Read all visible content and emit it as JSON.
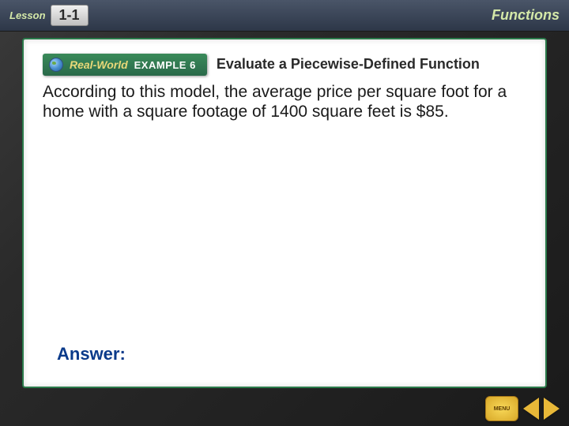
{
  "header": {
    "lesson_label": "Lesson",
    "lesson_number": "1-1",
    "chapter_title": "Functions"
  },
  "example": {
    "badge_realworld": "Real-World",
    "badge_label": "EXAMPLE 6",
    "title": "Evaluate a Piecewise-Defined Function"
  },
  "body": {
    "text": "According to this model, the average price per square foot for a home with a square footage of 1400 square feet is $85."
  },
  "answer": {
    "label": "Answer:"
  },
  "nav": {
    "menu_label": "MENU"
  },
  "colors": {
    "frame_border": "#2a7a4a",
    "header_accent": "#d4e8a8",
    "answer_color": "#0a3a8a",
    "nav_gold": "#e8b838"
  }
}
